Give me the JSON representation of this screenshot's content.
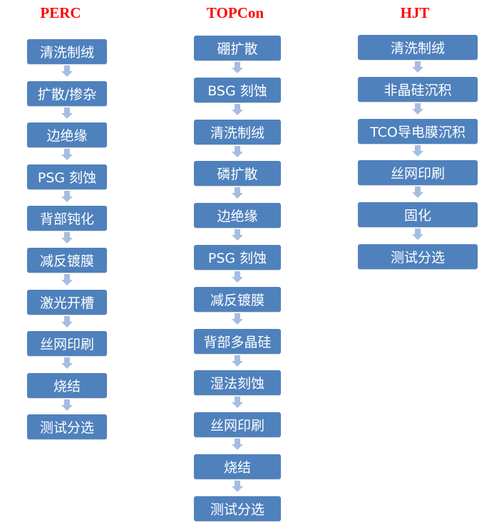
{
  "columns": [
    {
      "title": "PERC",
      "steps": [
        "清洗制绒",
        "扩散/掺杂",
        "边绝缘",
        "PSG 刻蚀",
        "背部钝化",
        "减反镀膜",
        "激光开槽",
        "丝网印刷",
        "烧结",
        "测试分选"
      ]
    },
    {
      "title": "TOPCon",
      "steps": [
        "硼扩散",
        "BSG 刻蚀",
        "清洗制绒",
        "磷扩散",
        "边绝缘",
        "PSG 刻蚀",
        "减反镀膜",
        "背部多晶硅",
        "湿法刻蚀",
        "丝网印刷",
        "烧结",
        "测试分选"
      ]
    },
    {
      "title": "HJT",
      "steps": [
        "清洗制绒",
        "非晶硅沉积",
        "TCO导电膜沉积",
        "丝网印刷",
        "固化",
        "测试分选"
      ]
    }
  ],
  "colors": {
    "title": "#ff0000",
    "box": "#4f81bd",
    "arrow": "#a7bde0"
  }
}
